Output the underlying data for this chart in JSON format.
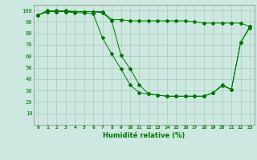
{
  "xlabel": "Humidité relative (%)",
  "background_color": "#cce8e0",
  "grid_color": "#aaccbb",
  "line_color": "#007700",
  "xlim": [
    -0.5,
    23.5
  ],
  "ylim": [
    0,
    105
  ],
  "yticks": [
    10,
    20,
    30,
    40,
    50,
    60,
    70,
    80,
    90,
    100
  ],
  "xticks": [
    0,
    1,
    2,
    3,
    4,
    5,
    6,
    7,
    8,
    9,
    10,
    11,
    12,
    13,
    14,
    15,
    16,
    17,
    18,
    19,
    20,
    21,
    22,
    23
  ],
  "series1": [
    96,
    100,
    99,
    100,
    99,
    99,
    99,
    98,
    91,
    61,
    49,
    35,
    27,
    26,
    25,
    25,
    25,
    25,
    25,
    28,
    35,
    31,
    72,
    85
  ],
  "series2": [
    96,
    99,
    100,
    99,
    98,
    98,
    97,
    76,
    62,
    49,
    35,
    28,
    27,
    26,
    25,
    25,
    25,
    25,
    25,
    28,
    34,
    31,
    72,
    86
  ],
  "series3": [
    96,
    99,
    99,
    99,
    99,
    99,
    99,
    99,
    92,
    92,
    91,
    91,
    91,
    91,
    91,
    91,
    91,
    90,
    89,
    89,
    89,
    89,
    89,
    86
  ]
}
